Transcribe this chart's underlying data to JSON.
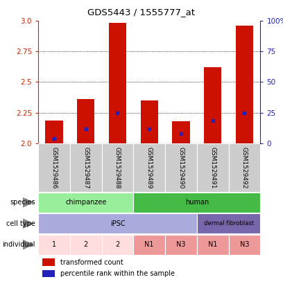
{
  "title": "GDS5443 / 1555777_at",
  "samples": [
    "GSM1529486",
    "GSM1529487",
    "GSM1529488",
    "GSM1529489",
    "GSM1529490",
    "GSM1529491",
    "GSM1529492"
  ],
  "red_values": [
    2.19,
    2.36,
    2.98,
    2.35,
    2.18,
    2.62,
    2.96
  ],
  "blue_values": [
    2.04,
    2.12,
    2.25,
    2.12,
    2.08,
    2.19,
    2.25
  ],
  "ymin": 2.0,
  "ymax": 3.0,
  "yticks": [
    2.0,
    2.25,
    2.5,
    2.75,
    3.0
  ],
  "right_yticks": [
    0,
    25,
    50,
    75,
    100
  ],
  "bar_width": 0.55,
  "bar_color": "#cc1100",
  "blue_color": "#2222bb",
  "species": [
    {
      "label": "chimpanzee",
      "cols": [
        0,
        1,
        2
      ],
      "color": "#99ee99"
    },
    {
      "label": "human",
      "cols": [
        3,
        4,
        5,
        6
      ],
      "color": "#44bb44"
    }
  ],
  "cell_type": [
    {
      "label": "iPSC",
      "cols": [
        0,
        1,
        2,
        3,
        4
      ],
      "color": "#aaaadd"
    },
    {
      "label": "dermal fibroblast",
      "cols": [
        5,
        6
      ],
      "color": "#7766aa"
    }
  ],
  "individual": [
    {
      "label": "1",
      "cols": [
        0
      ],
      "color": "#ffdddd"
    },
    {
      "label": "2",
      "cols": [
        1
      ],
      "color": "#ffdddd"
    },
    {
      "label": "2",
      "cols": [
        2
      ],
      "color": "#ffdddd"
    },
    {
      "label": "N1",
      "cols": [
        3
      ],
      "color": "#ee9999"
    },
    {
      "label": "N3",
      "cols": [
        4
      ],
      "color": "#ee9999"
    },
    {
      "label": "N1",
      "cols": [
        5
      ],
      "color": "#ee9999"
    },
    {
      "label": "N3",
      "cols": [
        6
      ],
      "color": "#ee9999"
    }
  ],
  "legend_items": [
    {
      "label": "transformed count",
      "color": "#cc1100",
      "marker": "s"
    },
    {
      "label": "percentile rank within the sample",
      "color": "#2222bb",
      "marker": "s"
    }
  ],
  "row_labels": [
    "species",
    "cell type",
    "individual"
  ],
  "tick_color_left": "#cc2200",
  "tick_color_right": "#2222bb",
  "sample_box_color": "#cccccc",
  "arrow_color": "#888888"
}
